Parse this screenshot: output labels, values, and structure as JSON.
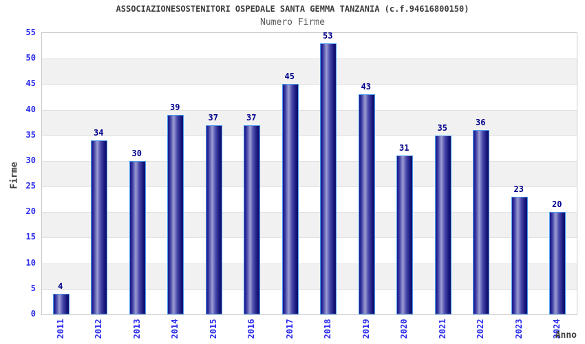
{
  "chart_data": {
    "type": "bar",
    "title": "ASSOCIAZIONESOSTENITORI OSPEDALE SANTA GEMMA TANZANIA (c.f.94616800150)",
    "subtitle": "Numero Firme",
    "xlabel": "Anno",
    "ylabel": "Firme",
    "categories": [
      "2011",
      "2012",
      "2013",
      "2014",
      "2015",
      "2016",
      "2017",
      "2018",
      "2019",
      "2020",
      "2021",
      "2022",
      "2023",
      "2024"
    ],
    "values": [
      4,
      34,
      30,
      39,
      37,
      37,
      45,
      53,
      43,
      31,
      35,
      36,
      23,
      20
    ],
    "ylim": [
      0,
      55
    ],
    "ytick_step": 5,
    "yticks": [
      0,
      5,
      10,
      15,
      20,
      25,
      30,
      35,
      40,
      45,
      50,
      55
    ],
    "legend": "none",
    "grid": "alternating horizontal bands every 5 units",
    "bar_labels_shown": true,
    "x_tick_rotation_deg": 90,
    "colors": {
      "bar_dark": "#18188a",
      "bar_highlight": "#9d9dd3",
      "bar_border": "#4d9ef0",
      "axis_tick_label": "#2b2bee",
      "value_label": "#00008c",
      "title": "#3c3c3c",
      "subtitle": "#5a5a5a",
      "axis_name_label": "#404040",
      "band": "#f1f1f1",
      "gridline": "#e0e0e0",
      "plot_border": "#c8c8c8",
      "background": "#ffffff"
    }
  }
}
